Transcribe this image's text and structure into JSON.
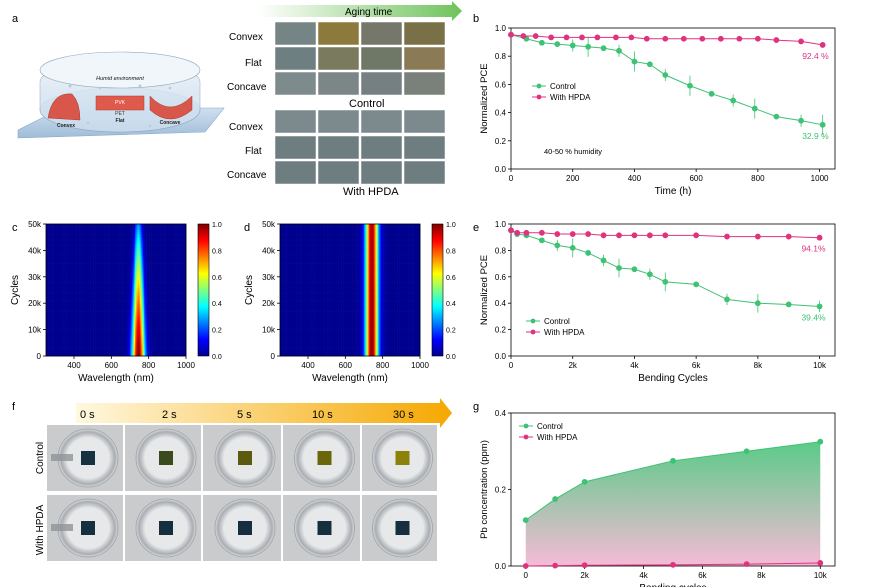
{
  "panel_letters": {
    "a": "a",
    "b": "b",
    "c": "c",
    "d": "d",
    "e": "e",
    "f": "f",
    "g": "g"
  },
  "panel_a": {
    "device_labels": {
      "humid": "Humid environment",
      "pvk": "PVK",
      "pet": "PET",
      "convex": "Convex",
      "flat": "Flat",
      "concave": "Concave"
    },
    "aging_label": "Aging time",
    "rows": [
      "Convex",
      "Flat",
      "Concave"
    ],
    "group_control": "Control",
    "group_hpda": "With HPDA"
  },
  "chart_data": [
    {
      "id": "b",
      "type": "line",
      "title": "",
      "xlabel": "Time (h)",
      "ylabel": "Normalized PCE",
      "xlim": [
        0,
        1050
      ],
      "ylim": [
        0,
        1.05
      ],
      "xticks": [
        "0",
        "200",
        "400",
        "600",
        "800",
        "1000"
      ],
      "yticks": [
        "0.0",
        "0.2",
        "0.4",
        "0.6",
        "0.8",
        "1.0"
      ],
      "annotation": "40-50 % humidity",
      "series": [
        {
          "name": "Control",
          "color": "#3ec274",
          "x": [
            0,
            50,
            100,
            150,
            200,
            250,
            300,
            350,
            400,
            450,
            500,
            580,
            650,
            720,
            790,
            860,
            940,
            1010
          ],
          "y": [
            1.0,
            0.97,
            0.94,
            0.93,
            0.92,
            0.91,
            0.9,
            0.88,
            0.8,
            0.78,
            0.7,
            0.62,
            0.56,
            0.51,
            0.45,
            0.39,
            0.36,
            0.329
          ],
          "end_label": "32.9 %"
        },
        {
          "name": "With HPDA",
          "color": "#e0327f",
          "x": [
            0,
            40,
            80,
            130,
            180,
            230,
            280,
            340,
            390,
            440,
            500,
            560,
            620,
            680,
            740,
            800,
            860,
            940,
            1010
          ],
          "y": [
            1.0,
            0.99,
            0.99,
            0.98,
            0.98,
            0.98,
            0.98,
            0.98,
            0.98,
            0.97,
            0.97,
            0.97,
            0.97,
            0.97,
            0.97,
            0.97,
            0.96,
            0.95,
            0.924
          ],
          "end_label": "92.4 %"
        }
      ]
    },
    {
      "id": "c",
      "type": "heatmap",
      "title": "",
      "xlabel": "Wavelength (nm)",
      "ylabel": "Cycles",
      "xlim": [
        250,
        1000
      ],
      "ylim": [
        0,
        50000
      ],
      "xticks": [
        "400",
        "600",
        "800",
        "1000"
      ],
      "yticks": [
        "0",
        "10k",
        "20k",
        "30k",
        "40k",
        "50k"
      ],
      "colorbar": [
        "0.0",
        "0.2",
        "0.4",
        "0.6",
        "0.8",
        "1.0"
      ],
      "peak_center_nm": 745,
      "peak_width_start_nm": 24,
      "peak_width_end_nm": 14,
      "intensity_start": 1.0,
      "intensity_end": 0.28
    },
    {
      "id": "d",
      "type": "heatmap",
      "title": "",
      "xlabel": "Wavelength (nm)",
      "ylabel": "Cycles",
      "xlim": [
        250,
        1000
      ],
      "ylim": [
        0,
        50000
      ],
      "xticks": [
        "400",
        "600",
        "800",
        "1000"
      ],
      "yticks": [
        "0",
        "10k",
        "20k",
        "30k",
        "40k",
        "50k"
      ],
      "colorbar": [
        "0.0",
        "0.2",
        "0.4",
        "0.6",
        "0.8",
        "1.0"
      ],
      "peak_center_nm": 742,
      "peak_width_start_nm": 24,
      "peak_width_end_nm": 24,
      "intensity_start": 1.0,
      "intensity_end": 0.97
    },
    {
      "id": "e",
      "type": "line",
      "title": "",
      "xlabel": "Bending Cycles",
      "ylabel": "Normalized PCE",
      "xlim": [
        0,
        10500
      ],
      "ylim": [
        0,
        1.05
      ],
      "xticks": [
        "0",
        "2k",
        "4k",
        "6k",
        "8k",
        "10k"
      ],
      "yticks": [
        "0.0",
        "0.2",
        "0.4",
        "0.6",
        "0.8",
        "1.0"
      ],
      "series": [
        {
          "name": "Control",
          "color": "#3ec274",
          "x": [
            0,
            200,
            500,
            1000,
            1500,
            2000,
            2500,
            3000,
            3500,
            4000,
            4500,
            5000,
            6000,
            7000,
            8000,
            9000,
            10000
          ],
          "y": [
            1.0,
            0.97,
            0.96,
            0.92,
            0.88,
            0.86,
            0.82,
            0.76,
            0.7,
            0.69,
            0.65,
            0.59,
            0.57,
            0.45,
            0.42,
            0.41,
            0.394
          ],
          "end_label": "39.4%"
        },
        {
          "name": "With HPDA",
          "color": "#e0327f",
          "x": [
            0,
            200,
            500,
            1000,
            1500,
            2000,
            2500,
            3000,
            3500,
            4000,
            4500,
            5000,
            6000,
            7000,
            8000,
            9000,
            10000
          ],
          "y": [
            1.0,
            0.98,
            0.98,
            0.98,
            0.97,
            0.97,
            0.97,
            0.96,
            0.96,
            0.96,
            0.96,
            0.96,
            0.96,
            0.95,
            0.95,
            0.95,
            0.941
          ],
          "end_label": "94.1%"
        }
      ]
    },
    {
      "id": "g",
      "type": "area",
      "title": "",
      "xlabel": "Bending cycles",
      "ylabel": "Pb concentration (ppm)",
      "xlim": [
        -500,
        10500
      ],
      "ylim": [
        0,
        0.4
      ],
      "xticks": [
        "0",
        "2k",
        "4k",
        "6k",
        "8k",
        "10k"
      ],
      "yticks": [
        "0.0",
        "0.2",
        "0.4"
      ],
      "series": [
        {
          "name": "Control",
          "color": "#3ec274",
          "x": [
            0,
            1000,
            2000,
            5000,
            7500,
            10000
          ],
          "y": [
            0.12,
            0.175,
            0.22,
            0.275,
            0.3,
            0.325
          ]
        },
        {
          "name": "With HPDA",
          "color": "#e0327f",
          "x": [
            0,
            1000,
            2000,
            5000,
            7500,
            10000
          ],
          "y": [
            0.0,
            0.001,
            0.002,
            0.003,
            0.005,
            0.008
          ]
        }
      ]
    }
  ],
  "panel_f": {
    "times": [
      "0 s",
      "2 s",
      "5 s",
      "10 s",
      "30 s"
    ],
    "rows": [
      "Control",
      "With HPDA"
    ],
    "square_colors_control": [
      "#163241",
      "#3b4a1c",
      "#5b5a0e",
      "#6a6609",
      "#8c820a"
    ],
    "square_colors_hpda": [
      "#152f3f",
      "#152f3f",
      "#152f3f",
      "#152f3f",
      "#152f3f"
    ]
  }
}
